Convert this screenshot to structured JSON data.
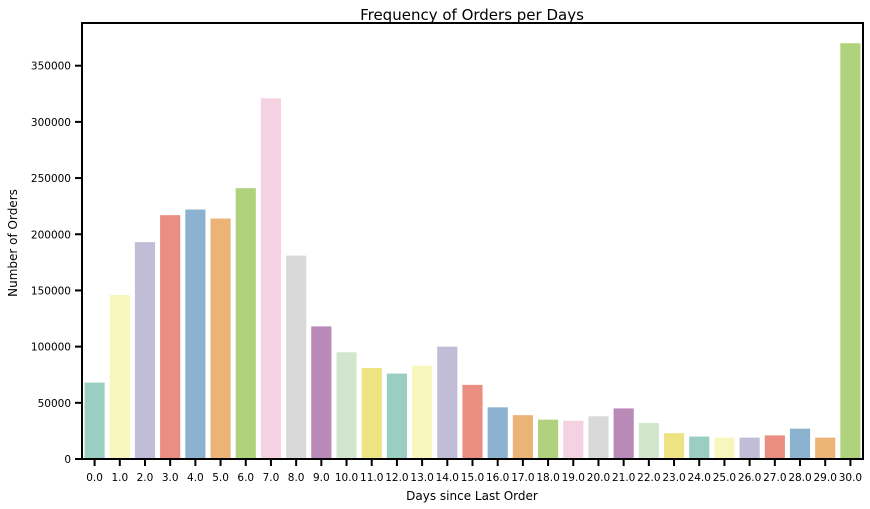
{
  "chart_data": {
    "type": "bar",
    "title": "Frequency of Orders per Days",
    "xlabel": "Days since Last Order",
    "ylabel": "Number of Orders",
    "ylim": [
      0,
      388000
    ],
    "yticks": [
      0,
      50000,
      100000,
      150000,
      200000,
      250000,
      300000,
      350000
    ],
    "grid": false,
    "categories": [
      "0.0",
      "1.0",
      "2.0",
      "3.0",
      "4.0",
      "5.0",
      "6.0",
      "7.0",
      "8.0",
      "9.0",
      "10.0",
      "11.0",
      "12.0",
      "13.0",
      "14.0",
      "15.0",
      "16.0",
      "17.0",
      "18.0",
      "19.0",
      "20.0",
      "21.0",
      "22.0",
      "23.0",
      "24.0",
      "25.0",
      "26.0",
      "27.0",
      "28.0",
      "29.0",
      "30.0"
    ],
    "values": [
      68000,
      146000,
      193000,
      217000,
      222000,
      214000,
      241000,
      321000,
      181000,
      118000,
      95000,
      81000,
      76000,
      83000,
      100000,
      66000,
      46000,
      39000,
      35000,
      34000,
      38000,
      45000,
      32000,
      23000,
      20000,
      19000,
      19000,
      21000,
      27000,
      19000,
      370000
    ],
    "colors": [
      "#9bcec3",
      "#f7f6bc",
      "#c1bdd6",
      "#ea8e81",
      "#8bb2cf",
      "#ecb376",
      "#b0d27c",
      "#f5d2e2",
      "#d9d9d9",
      "#b98ab8",
      "#d1e6cd",
      "#eee383",
      "#9bcec3",
      "#f7f6bc",
      "#c1bdd6",
      "#ea8e81",
      "#8bb2cf",
      "#ecb376",
      "#b0d27c",
      "#f5d2e2",
      "#d9d9d9",
      "#b98ab8",
      "#d1e6cd",
      "#eee383",
      "#9bcec3",
      "#f7f6bc",
      "#c1bdd6",
      "#ea8e81",
      "#8bb2cf",
      "#ecb376",
      "#b0d27c"
    ]
  }
}
